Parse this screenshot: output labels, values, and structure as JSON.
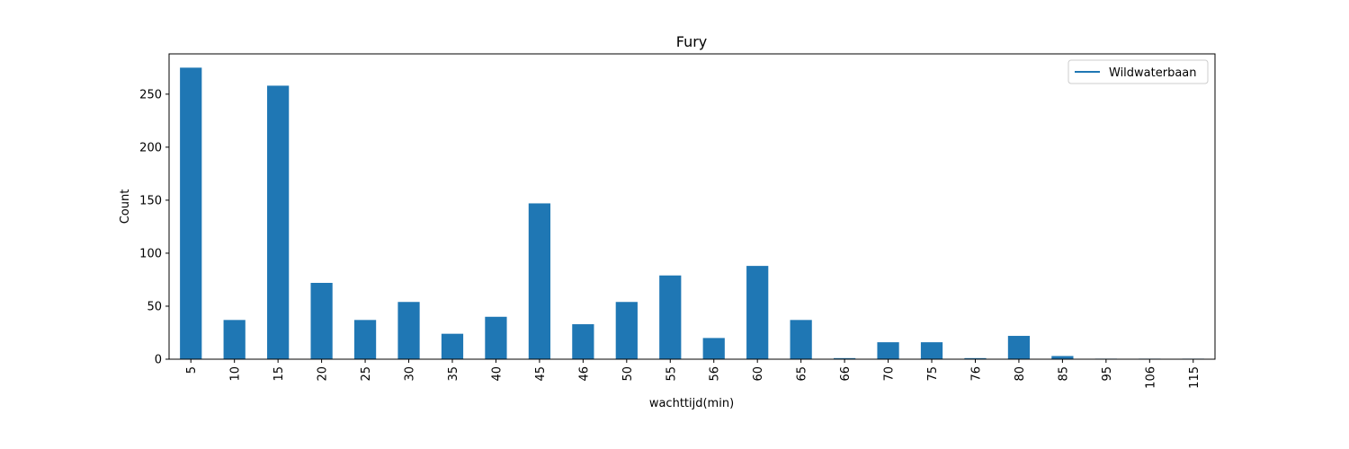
{
  "chart_data": {
    "type": "bar",
    "title": "Fury",
    "xlabel": "wachttijd(min)",
    "ylabel": "Count",
    "categories": [
      "5",
      "10",
      "15",
      "20",
      "25",
      "30",
      "35",
      "40",
      "45",
      "46",
      "50",
      "55",
      "56",
      "60",
      "65",
      "66",
      "70",
      "75",
      "76",
      "80",
      "85",
      "95",
      "106",
      "115"
    ],
    "series": [
      {
        "name": "Wildwaterbaan",
        "values": [
          275,
          37,
          258,
          72,
          37,
          54,
          24,
          40,
          147,
          33,
          54,
          79,
          20,
          88,
          37,
          1,
          16,
          16,
          1,
          22,
          3,
          0.5,
          0.5,
          0.5
        ]
      }
    ],
    "ylim": [
      0,
      288
    ],
    "yticks": [
      0,
      50,
      100,
      150,
      200,
      250
    ],
    "grid": false,
    "legend_position": "top-right",
    "colors": {
      "bar": "#1f77b4",
      "legend_line": "#1f77b4"
    }
  }
}
